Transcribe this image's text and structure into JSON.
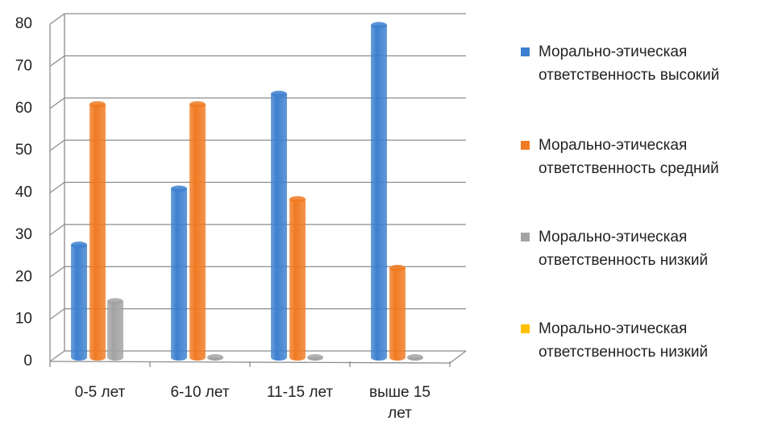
{
  "chart_data": {
    "type": "bar3d",
    "categories": [
      "0-5 лет",
      "6-10 лет",
      "11-15 лет",
      "выше 15 лет"
    ],
    "series": [
      {
        "name": "Морально-этическая ответственность высокий",
        "color": "#3d80cf",
        "values": [
          26.7,
          40,
          62.5,
          78.8
        ]
      },
      {
        "name": "Морально-этическая ответственность средний",
        "color": "#f07a22",
        "values": [
          60,
          60,
          37.5,
          21.2
        ]
      },
      {
        "name": "Морально-этическая ответственность низкий",
        "color": "#a3a3a3",
        "values": [
          13.3,
          0,
          0,
          0
        ]
      },
      {
        "name": "Морально-этическая ответственность низкий",
        "color": "#ffc000",
        "values": [
          null,
          null,
          null,
          null
        ]
      }
    ],
    "ylim": [
      0,
      80
    ],
    "yticks": [
      0,
      10,
      20,
      30,
      40,
      50,
      60,
      70,
      80
    ],
    "grid": true,
    "legend": "right"
  }
}
